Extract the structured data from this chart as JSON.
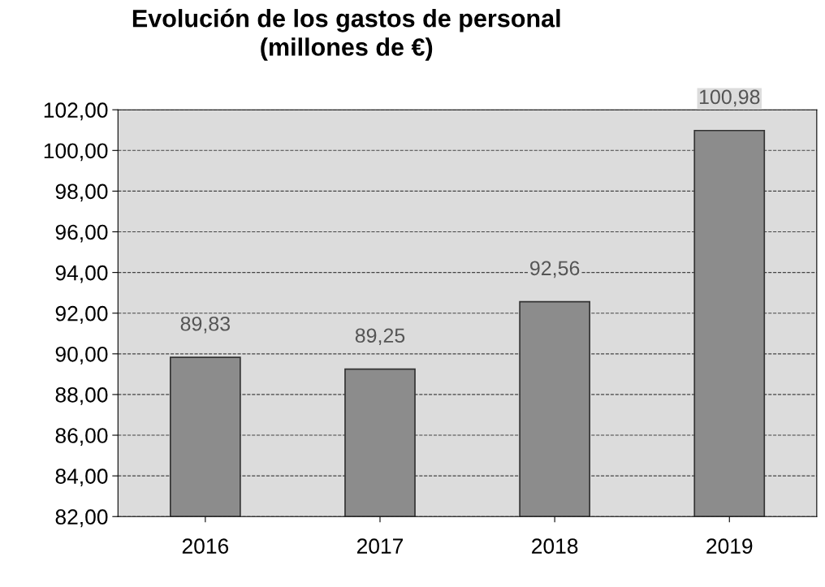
{
  "chart_data": {
    "type": "bar",
    "title": "Evolución de los gastos de personal\n(millones de €)",
    "categories": [
      "2016",
      "2017",
      "2018",
      "2019"
    ],
    "values": [
      89.83,
      89.25,
      92.56,
      100.98
    ],
    "value_labels": [
      "89,83",
      "89,25",
      "92,56",
      "100,98"
    ],
    "color": "#8c8c8c",
    "ylim": [
      82,
      102
    ],
    "yticks": [
      {
        "value": 82,
        "label": "82,00"
      },
      {
        "value": 84,
        "label": "84,00"
      },
      {
        "value": 86,
        "label": "86,00"
      },
      {
        "value": 88,
        "label": "88,00"
      },
      {
        "value": 90,
        "label": "90,00"
      },
      {
        "value": 92,
        "label": "92,00"
      },
      {
        "value": 94,
        "label": "94,00"
      },
      {
        "value": 96,
        "label": "96,00"
      },
      {
        "value": 98,
        "label": "98,00"
      },
      {
        "value": 100,
        "label": "100,00"
      },
      {
        "value": 102,
        "label": "102,00"
      }
    ],
    "grid": "y",
    "legend": false
  }
}
